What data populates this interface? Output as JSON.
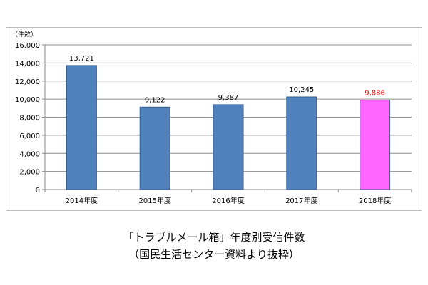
{
  "chart_data": {
    "type": "bar",
    "unit_label": "（件数）",
    "categories": [
      "2014年度",
      "2015年度",
      "2016年度",
      "2017年度",
      "2018年度"
    ],
    "values": [
      13721,
      9122,
      9387,
      10245,
      9886
    ],
    "value_labels": [
      "13,721",
      "9,122",
      "9,387",
      "10,245",
      "9,886"
    ],
    "ylim": [
      0,
      16000
    ],
    "yticks": [
      0,
      2000,
      4000,
      6000,
      8000,
      10000,
      12000,
      14000,
      16000
    ],
    "ytick_labels": [
      "0",
      "2,000",
      "4,000",
      "6,000",
      "8,000",
      "10,000",
      "12,000",
      "14,000",
      "16,000"
    ],
    "grid": "horizontal",
    "bar_colors": [
      "#4f81bd",
      "#4f81bd",
      "#4f81bd",
      "#4f81bd",
      "#ff66ff"
    ],
    "label_colors": [
      "#000000",
      "#000000",
      "#000000",
      "#000000",
      "#ff0000"
    ],
    "bar_edge_color": "#385d8a"
  },
  "caption": {
    "line1": "「トラブルメール箱」年度別受信件数",
    "line2": "（国民生活センター資料より抜粋）"
  }
}
